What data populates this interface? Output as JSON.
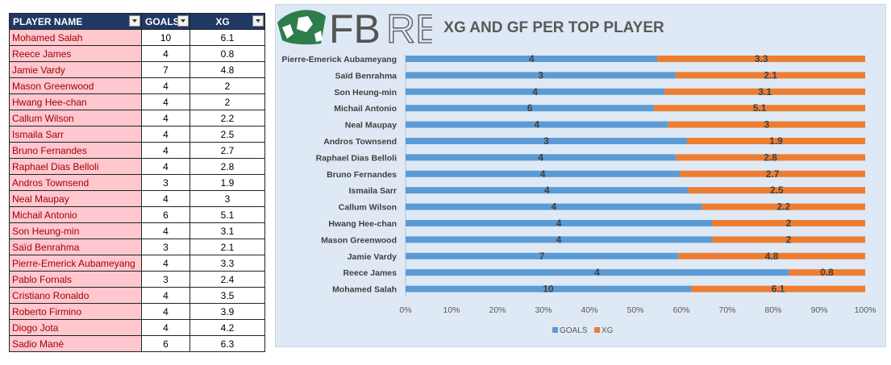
{
  "table": {
    "headers": [
      "PLAYER NAME",
      "GOALS",
      "XG"
    ],
    "rows": [
      [
        "Mohamed Salah",
        "10",
        "6.1"
      ],
      [
        "Reece James",
        "4",
        "0.8"
      ],
      [
        "Jamie Vardy",
        "7",
        "4.8"
      ],
      [
        "Mason Greenwood",
        "4",
        "2"
      ],
      [
        "Hwang Hee-chan",
        "4",
        "2"
      ],
      [
        "Callum Wilson",
        "4",
        "2.2"
      ],
      [
        "Ismaila Sarr",
        "4",
        "2.5"
      ],
      [
        "Bruno Fernandes",
        "4",
        "2.7"
      ],
      [
        "Raphael Dias Belloli",
        "4",
        "2.8"
      ],
      [
        "Andros Townsend",
        "3",
        "1.9"
      ],
      [
        "Neal Maupay",
        "4",
        "3"
      ],
      [
        "Michail Antonio",
        "6",
        "5.1"
      ],
      [
        "Son Heung-min",
        "4",
        "3.1"
      ],
      [
        "Saïd Benrahma",
        "3",
        "2.1"
      ],
      [
        "Pierre-Emerick Aubameyang",
        "4",
        "3.3"
      ],
      [
        "Pablo Fornals",
        "3",
        "2.4"
      ],
      [
        "Cristiano Ronaldo",
        "4",
        "3.5"
      ],
      [
        "Roberto Firmino",
        "4",
        "3.9"
      ],
      [
        "Diogo Jota",
        "4",
        "4.2"
      ],
      [
        "Sadio Mané",
        "6",
        "6.3"
      ]
    ]
  },
  "logo": {
    "text_a": "FB",
    "text_b": "REF"
  },
  "chart_data": {
    "type": "bar",
    "orientation": "horizontal",
    "stacking": "percent",
    "title": "XG AND GF PER TOP PLAYER",
    "categories": [
      "Mohamed Salah",
      "Reece James",
      "Jamie Vardy",
      "Mason Greenwood",
      "Hwang Hee-chan",
      "Callum Wilson",
      "Ismaila Sarr",
      "Bruno Fernandes",
      "Raphael Dias Belloli",
      "Andros Townsend",
      "Neal Maupay",
      "Michail Antonio",
      "Son Heung-min",
      "Saïd Benrahma",
      "Pierre-Emerick Aubameyang"
    ],
    "series": [
      {
        "name": "GOALS",
        "color": "#5b9bd5",
        "values": [
          10,
          4,
          7,
          4,
          4,
          4,
          4,
          4,
          4,
          3,
          4,
          6,
          4,
          3,
          4
        ]
      },
      {
        "name": "XG",
        "color": "#ed7d31",
        "values": [
          6.1,
          0.8,
          4.8,
          2,
          2,
          2.2,
          2.5,
          2.7,
          2.8,
          1.9,
          3,
          5.1,
          3.1,
          2.1,
          3.3
        ]
      }
    ],
    "x_ticks": [
      "0%",
      "10%",
      "20%",
      "30%",
      "40%",
      "50%",
      "60%",
      "70%",
      "80%",
      "90%",
      "100%"
    ],
    "xlim": [
      0,
      100
    ],
    "grid": false,
    "legend_position": "bottom"
  }
}
